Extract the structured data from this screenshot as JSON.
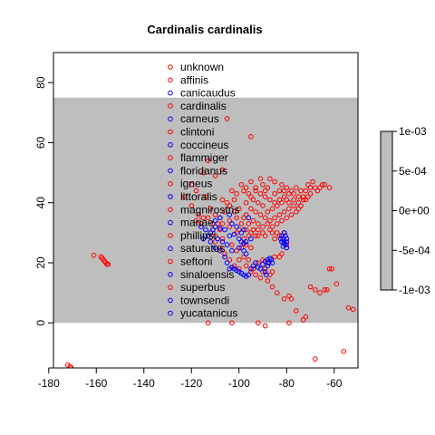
{
  "chart_data": {
    "type": "scatter",
    "title": "Cardinalis cardinalis",
    "xlabel": "",
    "ylabel": "",
    "xlim": [
      -178,
      -50
    ],
    "ylim": [
      -15,
      90
    ],
    "xticks": [
      -180,
      -160,
      -140,
      -120,
      -100,
      -80,
      -60
    ],
    "yticks": [
      0,
      20,
      40,
      60,
      80
    ],
    "background_band": {
      "y_from": 0,
      "y_to": 75,
      "color": "#BEBEBE"
    },
    "legend": {
      "position": "top-center",
      "entries": [
        {
          "label": "unknown",
          "color": "#FF0000"
        },
        {
          "label": "affinis",
          "color": "#FF0000"
        },
        {
          "label": "canicaudus",
          "color": "#0000FF"
        },
        {
          "label": "cardinalis",
          "color": "#FF0000"
        },
        {
          "label": "carneus",
          "color": "#0000FF"
        },
        {
          "label": "clintoni",
          "color": "#FF0000"
        },
        {
          "label": "coccineus",
          "color": "#0000FF"
        },
        {
          "label": "flammiger",
          "color": "#FF0000"
        },
        {
          "label": "floridanus",
          "color": "#0000FF"
        },
        {
          "label": "igneus",
          "color": "#FF0000"
        },
        {
          "label": "littoralis",
          "color": "#0000FF"
        },
        {
          "label": "magnirostris",
          "color": "#FF0000"
        },
        {
          "label": "mariae",
          "color": "#0000FF"
        },
        {
          "label": "phillipsi",
          "color": "#FF0000"
        },
        {
          "label": "saturatus",
          "color": "#0000FF"
        },
        {
          "label": "seftoni",
          "color": "#FF0000"
        },
        {
          "label": "sinaloensis",
          "color": "#0000FF"
        },
        {
          "label": "superbus",
          "color": "#FF0000"
        },
        {
          "label": "townsendi",
          "color": "#0000FF"
        },
        {
          "label": "yucatanicus",
          "color": "#0000FF"
        }
      ]
    },
    "colorbar": {
      "ticks": [
        "1e-03",
        "5e-04",
        "0e+00",
        "-5e-04",
        "-1e-03"
      ],
      "color": "#BEBEBE"
    },
    "series": [
      {
        "color": "#FF0000",
        "points": [
          [
            -172,
            -14
          ],
          [
            -171,
            -14.5
          ],
          [
            -170.5,
            -15
          ],
          [
            -161,
            22.5
          ],
          [
            -158,
            22
          ],
          [
            -157.5,
            21.5
          ],
          [
            -157,
            21
          ],
          [
            -156.5,
            20.5
          ],
          [
            -156,
            20
          ],
          [
            -155.5,
            19.5
          ],
          [
            -155,
            19.5
          ],
          [
            -105,
            68
          ],
          [
            -95,
            62
          ],
          [
            -113,
            54
          ],
          [
            -107,
            51
          ],
          [
            -115,
            50
          ],
          [
            -110,
            49
          ],
          [
            -120,
            46
          ],
          [
            -118,
            44
          ],
          [
            -114,
            42
          ],
          [
            -123,
            42
          ],
          [
            -120,
            39
          ],
          [
            -117,
            36
          ],
          [
            -116,
            33
          ],
          [
            -111,
            31
          ],
          [
            -110,
            27
          ],
          [
            -108,
            25
          ],
          [
            -106,
            23
          ],
          [
            -104,
            21
          ],
          [
            -102,
            19
          ],
          [
            -100,
            18
          ],
          [
            -97,
            19
          ],
          [
            -95,
            17
          ],
          [
            -93,
            16
          ],
          [
            -91,
            15
          ],
          [
            -88,
            14
          ],
          [
            -86,
            12
          ],
          [
            -84,
            10
          ],
          [
            -81,
            8
          ],
          [
            -79,
            9
          ],
          [
            -78,
            8
          ],
          [
            -76,
            4
          ],
          [
            -73,
            1
          ],
          [
            -70,
            12
          ],
          [
            -68,
            11
          ],
          [
            -66,
            10
          ],
          [
            -64,
            11
          ],
          [
            -62,
            18
          ],
          [
            -61,
            18
          ],
          [
            -63,
            11
          ],
          [
            -59,
            13
          ],
          [
            -54,
            5
          ],
          [
            -52,
            4.5
          ],
          [
            -56,
            -9.5
          ],
          [
            -68,
            -12
          ],
          [
            -72,
            2
          ],
          [
            -79,
            0
          ],
          [
            -89,
            -1
          ],
          [
            -92,
            0
          ],
          [
            -103,
            0
          ],
          [
            -113,
            0
          ],
          [
            -112,
            30
          ],
          [
            -109,
            33
          ],
          [
            -104,
            32
          ],
          [
            -101,
            30
          ],
          [
            -98,
            28
          ],
          [
            -97,
            26
          ],
          [
            -95,
            25
          ],
          [
            -98,
            22
          ],
          [
            -96,
            21
          ],
          [
            -92,
            20
          ],
          [
            -90,
            21
          ],
          [
            -88,
            20
          ],
          [
            -89,
            18
          ],
          [
            -87,
            16
          ],
          [
            -85,
            22
          ],
          [
            -83,
            22
          ],
          [
            -82,
            23
          ],
          [
            -85,
            28
          ],
          [
            -82,
            27
          ],
          [
            -80,
            26
          ],
          [
            -81,
            30
          ],
          [
            -84,
            30
          ],
          [
            -87,
            31
          ],
          [
            -90,
            30
          ],
          [
            -92,
            31
          ],
          [
            -95,
            30
          ],
          [
            -97,
            31
          ],
          [
            -99,
            33
          ],
          [
            -101,
            35
          ],
          [
            -100,
            38
          ],
          [
            -97,
            40
          ],
          [
            -95,
            42
          ],
          [
            -93,
            44
          ],
          [
            -90,
            46
          ],
          [
            -88,
            45
          ],
          [
            -85,
            47
          ],
          [
            -82,
            46
          ],
          [
            -80,
            45
          ],
          [
            -78,
            44
          ],
          [
            -76,
            45
          ],
          [
            -74,
            44
          ],
          [
            -72,
            44
          ],
          [
            -70,
            45
          ],
          [
            -68,
            45
          ],
          [
            -66,
            45
          ],
          [
            -65,
            46
          ],
          [
            -67,
            44
          ],
          [
            -71,
            42
          ],
          [
            -73,
            41
          ],
          [
            -75,
            40
          ],
          [
            -77,
            39
          ],
          [
            -79,
            38
          ],
          [
            -81,
            37
          ],
          [
            -83,
            36
          ],
          [
            -85,
            35
          ],
          [
            -87,
            34
          ],
          [
            -89,
            35
          ],
          [
            -91,
            36
          ],
          [
            -93,
            37
          ],
          [
            -95,
            38
          ],
          [
            -97,
            36
          ],
          [
            -94,
            34
          ],
          [
            -92,
            33
          ],
          [
            -90,
            32
          ],
          [
            -88,
            33
          ],
          [
            -86,
            32
          ],
          [
            -84,
            33
          ],
          [
            -82,
            34
          ],
          [
            -80,
            35
          ],
          [
            -78,
            36
          ],
          [
            -76,
            37
          ],
          [
            -74,
            39
          ],
          [
            -72,
            41
          ],
          [
            -70,
            43
          ],
          [
            -80,
            41
          ],
          [
            -82,
            40
          ],
          [
            -84,
            39
          ],
          [
            -86,
            38
          ],
          [
            -88,
            37
          ],
          [
            -90,
            39
          ],
          [
            -92,
            40
          ],
          [
            -94,
            41
          ],
          [
            -96,
            43
          ],
          [
            -98,
            44
          ],
          [
            -102,
            41
          ],
          [
            -104,
            39
          ],
          [
            -106,
            37
          ],
          [
            -108,
            35
          ],
          [
            -110,
            36
          ],
          [
            -112,
            38
          ],
          [
            -107,
            41
          ],
          [
            -103,
            44
          ],
          [
            -99,
            46
          ],
          [
            -95,
            47
          ],
          [
            -91,
            48
          ],
          [
            -87,
            48
          ],
          [
            -83,
            44
          ],
          [
            -79,
            43
          ],
          [
            -75,
            42
          ],
          [
            -71,
            46
          ],
          [
            -69,
            47
          ],
          [
            -64,
            46
          ],
          [
            -62,
            45
          ],
          [
            -91,
            43
          ],
          [
            -89,
            42
          ],
          [
            -87,
            41
          ],
          [
            -85,
            40
          ],
          [
            -83,
            41
          ],
          [
            -81,
            42
          ],
          [
            -79,
            40
          ],
          [
            -77,
            41
          ],
          [
            -75,
            38
          ],
          [
            -73,
            42
          ],
          [
            -77,
            43
          ],
          [
            -81,
            44
          ],
          [
            -85,
            43
          ],
          [
            -89,
            44
          ],
          [
            -93,
            45
          ],
          [
            -97,
            45
          ],
          [
            -101,
            43
          ],
          [
            -105,
            40
          ],
          [
            -102,
            37
          ],
          [
            -98,
            35
          ],
          [
            -96,
            33
          ],
          [
            -94,
            31
          ],
          [
            -92,
            29
          ],
          [
            -96,
            29
          ],
          [
            -100,
            31
          ],
          [
            -104,
            34
          ],
          [
            -108,
            31
          ],
          [
            -110,
            29
          ],
          [
            -107,
            28
          ],
          [
            -103,
            26
          ],
          [
            -101,
            24
          ],
          [
            -99,
            25
          ],
          [
            -100,
            21
          ],
          [
            -94,
            18
          ],
          [
            -90,
            17
          ],
          [
            -86,
            17
          ],
          [
            -83,
            29
          ],
          [
            -86,
            30
          ],
          [
            -89,
            29
          ],
          [
            -93,
            29
          ],
          [
            -118,
            34
          ],
          [
            -115,
            35
          ],
          [
            -113,
            35
          ],
          [
            -111,
            33
          ],
          [
            -107,
            33
          ]
        ]
      },
      {
        "color": "#0000FF",
        "points": [
          [
            -115,
            28
          ],
          [
            -113,
            29
          ],
          [
            -112,
            27
          ],
          [
            -110,
            25
          ],
          [
            -108,
            24
          ],
          [
            -106,
            22
          ],
          [
            -105,
            20
          ],
          [
            -104,
            18
          ],
          [
            -103,
            18.5
          ],
          [
            -102,
            18
          ],
          [
            -101,
            17.5
          ],
          [
            -100,
            17
          ],
          [
            -99,
            16.5
          ],
          [
            -98,
            16
          ],
          [
            -97,
            15.5
          ],
          [
            -96,
            16
          ],
          [
            -95,
            18
          ],
          [
            -94,
            19
          ],
          [
            -93,
            20
          ],
          [
            -92,
            18.5
          ],
          [
            -91,
            18
          ],
          [
            -90,
            19.5
          ],
          [
            -89,
            20.5
          ],
          [
            -88,
            21
          ],
          [
            -87,
            21.5
          ],
          [
            -88,
            19
          ],
          [
            -89,
            17
          ],
          [
            -88.5,
            16
          ],
          [
            -87.5,
            20
          ],
          [
            -86.5,
            21
          ],
          [
            -86,
            20
          ],
          [
            -111,
            31
          ],
          [
            -110,
            32
          ],
          [
            -108,
            31.5
          ],
          [
            -106,
            31
          ],
          [
            -104,
            29
          ],
          [
            -102,
            29.5
          ],
          [
            -100,
            28
          ],
          [
            -99,
            27
          ],
          [
            -98,
            26.5
          ],
          [
            -97,
            27
          ],
          [
            -100,
            25
          ],
          [
            -98,
            24
          ],
          [
            -97,
            23
          ],
          [
            -103,
            24
          ],
          [
            -105,
            26
          ],
          [
            -107,
            27
          ],
          [
            -109,
            28
          ],
          [
            -112,
            30
          ],
          [
            -114,
            31
          ],
          [
            -116,
            32
          ],
          [
            -110,
            34
          ],
          [
            -108,
            35
          ],
          [
            -104,
            36
          ],
          [
            -103,
            33
          ],
          [
            -101,
            32
          ],
          [
            -99,
            30
          ],
          [
            -98,
            31
          ],
          [
            -96,
            35
          ],
          [
            -95,
            28
          ],
          [
            -80,
            25
          ],
          [
            -80.5,
            26
          ],
          [
            -81,
            27
          ],
          [
            -81.5,
            28
          ],
          [
            -82,
            29
          ],
          [
            -81,
            30
          ],
          [
            -80,
            28
          ],
          [
            -80.5,
            29
          ],
          [
            -82,
            27
          ],
          [
            -81,
            26.5
          ],
          [
            -80,
            27
          ],
          [
            -81.5,
            25.5
          ],
          [
            -82.5,
            28
          ]
        ]
      }
    ]
  }
}
